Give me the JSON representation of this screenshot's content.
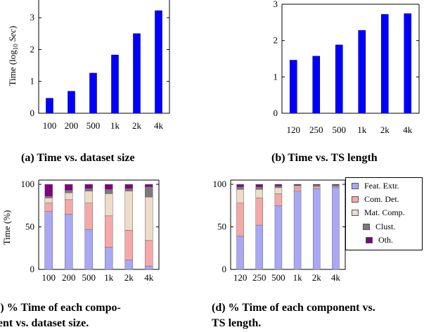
{
  "chart_data": [
    {
      "type": "bar",
      "panel": "a",
      "categories": [
        "100",
        "200",
        "500",
        "1k",
        "2k",
        "4k"
      ],
      "values": [
        0.47,
        0.69,
        1.26,
        1.83,
        2.5,
        3.22
      ],
      "ylabel_pre": "Time (log",
      "ylabel_sub": "10",
      "ylabel_post": " Sec)",
      "ylim": [
        0,
        3.6
      ],
      "yticks": [
        "0",
        "1",
        "2",
        "3"
      ],
      "bar_color": "#0000ff",
      "caption": "(a) Time vs. dataset size"
    },
    {
      "type": "bar",
      "panel": "b",
      "categories": [
        "120",
        "250",
        "500",
        "1k",
        "2k",
        "4k"
      ],
      "values": [
        1.46,
        1.57,
        1.88,
        2.28,
        2.72,
        2.74
      ],
      "ylim": [
        0,
        3.0
      ],
      "yticks": [
        "0",
        "1",
        "2",
        "3"
      ],
      "bar_color": "#0000ff",
      "caption": "(b) Time vs. TS length"
    },
    {
      "type": "stacked-bar",
      "panel": "c",
      "categories": [
        "100",
        "200",
        "500",
        "1k",
        "2k",
        "4k"
      ],
      "ylabel": "Time (%)",
      "ylim": [
        0,
        105
      ],
      "yticks": [
        "0",
        "50",
        "100"
      ],
      "series": [
        {
          "name": "Feat. Extr.",
          "color": "#a8a8f5",
          "values": [
            68,
            65,
            47,
            26,
            11,
            4
          ]
        },
        {
          "name": "Com. Det.",
          "color": "#f5a8a8",
          "values": [
            10,
            17,
            31,
            37,
            35,
            30
          ]
        },
        {
          "name": "Mat. Comp.",
          "color": "#ecdcc8",
          "values": [
            6,
            8,
            14,
            26,
            46,
            51
          ]
        },
        {
          "name": "Clust.",
          "color": "#7a7a7a",
          "values": [
            2,
            3,
            3,
            5,
            3,
            12
          ]
        },
        {
          "name": "Oth.",
          "color": "#800080",
          "values": [
            14,
            7,
            5,
            6,
            5,
            3
          ]
        }
      ],
      "caption_lines": [
        "(c) % Time of each compo-",
        "nent vs. dataset size."
      ]
    },
    {
      "type": "stacked-bar",
      "panel": "d",
      "categories": [
        "120",
        "250",
        "500",
        "1k",
        "2k",
        "4k"
      ],
      "ylim": [
        0,
        105
      ],
      "yticks": [
        "0",
        "50",
        "100"
      ],
      "series": [
        {
          "name": "Feat. Extr.",
          "color": "#a8a8f5",
          "values": [
            39,
            52,
            75,
            92,
            95,
            96
          ]
        },
        {
          "name": "Com. Det.",
          "color": "#f5a8a8",
          "values": [
            39,
            32,
            14,
            4,
            2,
            1
          ]
        },
        {
          "name": "Mat. Comp.",
          "color": "#ecdcc8",
          "values": [
            16,
            10,
            7,
            2,
            1,
            1
          ]
        },
        {
          "name": "Clust.",
          "color": "#7a7a7a",
          "values": [
            3,
            3,
            2,
            1,
            1,
            1
          ]
        },
        {
          "name": "Oth.",
          "color": "#800080",
          "values": [
            3,
            3,
            2,
            1,
            1,
            1
          ]
        }
      ],
      "caption_lines": [
        "(d) % Time of each component vs.",
        "TS length."
      ]
    }
  ],
  "legend": {
    "items": [
      {
        "label": "Feat. Extr.",
        "color": "#a8a8f5"
      },
      {
        "label": "Com. Det.",
        "color": "#f5a8a8"
      },
      {
        "label": "Mat. Comp.",
        "color": "#ecdcc8"
      },
      {
        "label": "Clust.",
        "color": "#7a7a7a"
      },
      {
        "label": "Oth.",
        "color": "#800080"
      }
    ]
  }
}
